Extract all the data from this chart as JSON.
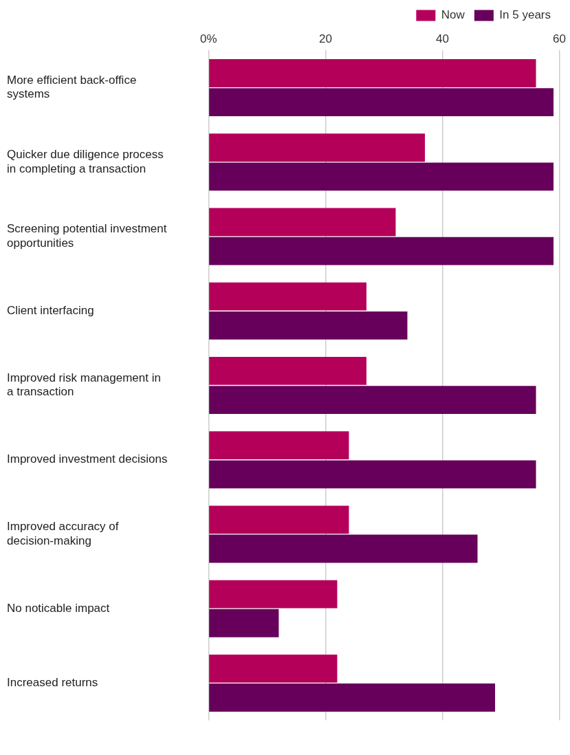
{
  "chart_data": {
    "type": "bar",
    "orientation": "horizontal",
    "categories": [
      "More efficient back-office systems",
      "Quicker due diligence process in completing a transaction",
      "Screening potential investment opportunities",
      "Client interfacing",
      "Improved risk management in a transaction",
      "Improved investment decisions",
      "Improved accuracy of decision-making",
      "No noticable impact",
      "Increased returns"
    ],
    "series": [
      {
        "name": "Now",
        "color": "#b5005a",
        "values": [
          56,
          37,
          32,
          27,
          27,
          24,
          24,
          22,
          22
        ]
      },
      {
        "name": "In 5 years",
        "color": "#66005a",
        "values": [
          59,
          59,
          59,
          34,
          56,
          56,
          46,
          12,
          49
        ]
      }
    ],
    "xlim": [
      0,
      60
    ],
    "xticks": [
      {
        "value": 0,
        "label": "0%"
      },
      20,
      40,
      60
    ],
    "grid": "x",
    "legend": "top right"
  }
}
